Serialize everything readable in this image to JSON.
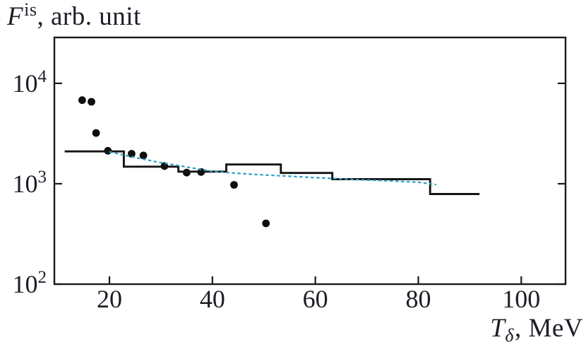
{
  "figure": {
    "y_axis_title": {
      "symbol": "F",
      "superscript": "is",
      "rest": ", arb. unit"
    },
    "x_axis_title": {
      "symbol": "T",
      "subscript": "δ",
      "rest": ", MeV"
    }
  },
  "colors": {
    "frame": "#1a1a1a",
    "tick": "#1a1a1a",
    "text": "#1d1d27",
    "histogram": "#141414",
    "points": "#0f0f0f",
    "fit_curve": "#2d9fc6",
    "background": "#ffffff"
  },
  "chart_data": {
    "type": "line",
    "title": "",
    "xlabel": "T_δ, MeV",
    "ylabel": "F^is, arb. unit",
    "x_axis": {
      "scale": "linear",
      "range": [
        9.3,
        108.6
      ],
      "ticks": [
        20,
        40,
        60,
        80,
        100
      ]
    },
    "y_axis": {
      "scale": "log10",
      "range_log10": [
        2,
        4.457
      ],
      "tick_exponents": [
        2,
        3,
        4
      ],
      "tick_base": "10"
    },
    "grid": false,
    "legend": false,
    "series": [
      {
        "name": "experimental-points",
        "type": "scatter",
        "marker": "filled-circle",
        "points": [
          {
            "T": 14.7,
            "F": 6800
          },
          {
            "T": 16.5,
            "F": 6550
          },
          {
            "T": 17.4,
            "F": 3200
          },
          {
            "T": 19.7,
            "F": 2130
          },
          {
            "T": 24.3,
            "F": 1990
          },
          {
            "T": 26.6,
            "F": 1915
          },
          {
            "T": 30.7,
            "F": 1500
          },
          {
            "T": 35.0,
            "F": 1290
          },
          {
            "T": 37.8,
            "F": 1310
          },
          {
            "T": 44.2,
            "F": 975
          },
          {
            "T": 50.4,
            "F": 403
          }
        ]
      },
      {
        "name": "model-histogram",
        "type": "step",
        "bin_edges_T": [
          11.3,
          22.8,
          33.4,
          42.7,
          53.3,
          63.3,
          82.3,
          91.9
        ],
        "values_F": [
          2100,
          1480,
          1320,
          1555,
          1280,
          1110,
          790
        ]
      },
      {
        "name": "fit-curve",
        "type": "line",
        "style": "dashed",
        "points": [
          {
            "T": 20.0,
            "F": 2075
          },
          {
            "T": 23.0,
            "F": 1920
          },
          {
            "T": 26.0,
            "F": 1780
          },
          {
            "T": 30.0,
            "F": 1620
          },
          {
            "T": 33.0,
            "F": 1530
          },
          {
            "T": 37.0,
            "F": 1410
          },
          {
            "T": 40.0,
            "F": 1330
          },
          {
            "T": 44.0,
            "F": 1280
          },
          {
            "T": 48.0,
            "F": 1240
          },
          {
            "T": 54.0,
            "F": 1195
          },
          {
            "T": 60.0,
            "F": 1150
          },
          {
            "T": 67.0,
            "F": 1105
          },
          {
            "T": 74.0,
            "F": 1070
          },
          {
            "T": 80.0,
            "F": 1035
          },
          {
            "T": 83.5,
            "F": 980
          }
        ]
      }
    ]
  }
}
